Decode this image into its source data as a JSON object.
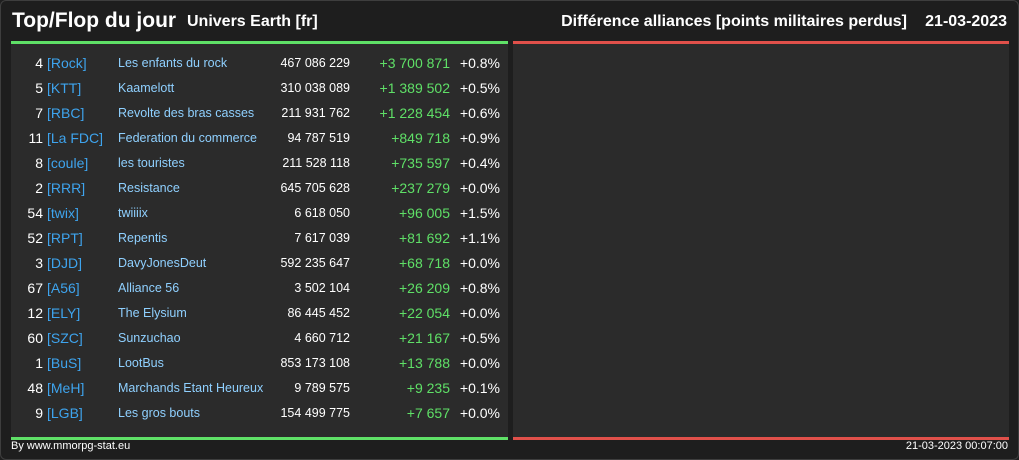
{
  "header": {
    "title": "Top/Flop du jour",
    "universe": "Univers Earth [fr]",
    "ranking_title": "Différence alliances [points militaires perdus]",
    "date": "21-03-2023"
  },
  "colors": {
    "top_accent": "#5fe067",
    "flop_accent": "#e0504a",
    "tag": "#3ea4ee",
    "name": "#8fd0ff",
    "panel_bg": "#2b2b2b"
  },
  "top_rows": [
    {
      "rank": "4",
      "tag": "[Rock]",
      "name": "Les enfants du rock",
      "points": "467 086 229",
      "diff": "+3 700 871",
      "pct": "+0.8%"
    },
    {
      "rank": "5",
      "tag": "[KTT]",
      "name": "Kaamelott",
      "points": "310 038 089",
      "diff": "+1 389 502",
      "pct": "+0.5%"
    },
    {
      "rank": "7",
      "tag": "[RBC]",
      "name": "Revolte des bras casses",
      "points": "211 931 762",
      "diff": "+1 228 454",
      "pct": "+0.6%"
    },
    {
      "rank": "11",
      "tag": "[La FDC]",
      "name": "Federation du commerce",
      "points": "94 787 519",
      "diff": "+849 718",
      "pct": "+0.9%"
    },
    {
      "rank": "8",
      "tag": "[coule]",
      "name": "les touristes",
      "points": "211 528 118",
      "diff": "+735 597",
      "pct": "+0.4%"
    },
    {
      "rank": "2",
      "tag": "[RRR]",
      "name": "Resistance",
      "points": "645 705 628",
      "diff": "+237 279",
      "pct": "+0.0%"
    },
    {
      "rank": "54",
      "tag": "[twix]",
      "name": "twiiiix",
      "points": "6 618 050",
      "diff": "+96 005",
      "pct": "+1.5%"
    },
    {
      "rank": "52",
      "tag": "[RPT]",
      "name": "Repentis",
      "points": "7 617 039",
      "diff": "+81 692",
      "pct": "+1.1%"
    },
    {
      "rank": "3",
      "tag": "[DJD]",
      "name": "DavyJonesDeut",
      "points": "592 235 647",
      "diff": "+68 718",
      "pct": "+0.0%"
    },
    {
      "rank": "67",
      "tag": "[A56]",
      "name": "Alliance 56",
      "points": "3 502 104",
      "diff": "+26 209",
      "pct": "+0.8%"
    },
    {
      "rank": "12",
      "tag": "[ELY]",
      "name": "The Elysium",
      "points": "86 445 452",
      "diff": "+22 054",
      "pct": "+0.0%"
    },
    {
      "rank": "60",
      "tag": "[SZC]",
      "name": "Sunzuchao",
      "points": "4 660 712",
      "diff": "+21 167",
      "pct": "+0.5%"
    },
    {
      "rank": "1",
      "tag": "[BuS]",
      "name": "LootBus",
      "points": "853 173 108",
      "diff": "+13 788",
      "pct": "+0.0%"
    },
    {
      "rank": "48",
      "tag": "[MeH]",
      "name": "Marchands Etant Heureux",
      "points": "9 789 575",
      "diff": "+9 235",
      "pct": "+0.1%"
    },
    {
      "rank": "9",
      "tag": "[LGB]",
      "name": "Les gros bouts",
      "points": "154 499 775",
      "diff": "+7 657",
      "pct": "+0.0%"
    }
  ],
  "footer": {
    "credit": "By www.mmorpg-stat.eu",
    "timestamp": "21-03-2023 00:07:00"
  }
}
